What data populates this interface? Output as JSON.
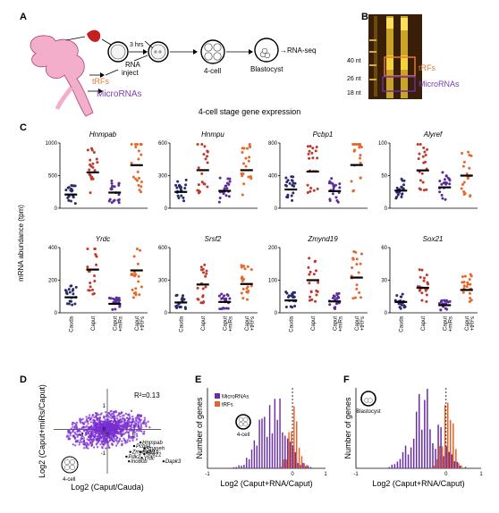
{
  "panel_labels": {
    "a": "A",
    "b": "B",
    "c": "C",
    "d": "D",
    "e": "E",
    "f": "F"
  },
  "panel_a": {
    "time_label": "3 hrs",
    "rna_label_1": "RNA",
    "rna_label_2": "inject",
    "stage_4cell": "4-cell",
    "stage_blastocyst": "Blastocyst",
    "rnaseq": "→RNA-seq",
    "trfs": "tRFs",
    "micrornas": "MicroRNAs",
    "colors": {
      "caput": "#e07040",
      "cauda": "#7a3fb0",
      "sperm": "#c42020",
      "epididymis": "#f0a8c8"
    }
  },
  "panel_b": {
    "markers": [
      "40 nt",
      "26 nt",
      "18 nt"
    ],
    "trfs": "tRFs",
    "micrornas": "MicroRNAs"
  },
  "panel_c": {
    "title": "4-cell stage gene expression",
    "ylabel": "mRNA abundance (tpm)",
    "xcats": [
      "Cauda",
      "Caput",
      "Caput\n+miRs",
      "Caput\n+tRFs"
    ],
    "colors": [
      "#2a2a6e",
      "#c0392b",
      "#5b2d9a",
      "#e8662a"
    ]
  },
  "chart_data": [
    {
      "type": "scatter",
      "title": "Hnmpab",
      "categories": [
        "Cauda",
        "Caput",
        "Caput+miRs",
        "Caput+tRFs"
      ],
      "medians": [
        210,
        550,
        240,
        660
      ],
      "ylim": [
        0,
        1000
      ],
      "yticks": [
        0,
        500,
        1000
      ]
    },
    {
      "type": "scatter",
      "title": "Hnmpu",
      "categories": [
        "Cauda",
        "Caput",
        "Caput+miRs",
        "Caput+tRFs"
      ],
      "medians": [
        150,
        350,
        160,
        350
      ],
      "ylim": [
        0,
        600
      ],
      "yticks": [
        0,
        300,
        600
      ]
    },
    {
      "type": "scatter",
      "title": "Pcbp1",
      "categories": [
        "Cauda",
        "Caput",
        "Caput+miRs",
        "Caput+tRFs"
      ],
      "medians": [
        230,
        450,
        210,
        530
      ],
      "ylim": [
        0,
        800
      ],
      "yticks": [
        0,
        400,
        800
      ]
    },
    {
      "type": "scatter",
      "title": "Alyref",
      "categories": [
        "Cauda",
        "Caput",
        "Caput+miRs",
        "Caput+tRFs"
      ],
      "medians": [
        27,
        58,
        32,
        50
      ],
      "ylim": [
        0,
        100
      ],
      "yticks": [
        0,
        50,
        100
      ]
    },
    {
      "type": "scatter",
      "title": "Yrdc",
      "categories": [
        "Cauda",
        "Caput",
        "Caput+miRs",
        "Caput+tRFs"
      ],
      "medians": [
        95,
        265,
        55,
        260
      ],
      "ylim": [
        0,
        400
      ],
      "yticks": [
        0,
        200,
        400
      ]
    },
    {
      "type": "scatter",
      "title": "Srsf2",
      "categories": [
        "Cauda",
        "Caput",
        "Caput+miRs",
        "Caput+tRFs"
      ],
      "medians": [
        95,
        260,
        100,
        265
      ],
      "ylim": [
        0,
        600
      ],
      "yticks": [
        0,
        300,
        600
      ]
    },
    {
      "type": "scatter",
      "title": "Zmynd19",
      "categories": [
        "Cauda",
        "Caput",
        "Caput+miRs",
        "Caput+tRFs"
      ],
      "medians": [
        38,
        100,
        35,
        108
      ],
      "ylim": [
        0,
        200
      ],
      "yticks": [
        0,
        100,
        200
      ]
    },
    {
      "type": "scatter",
      "title": "Sox21",
      "categories": [
        "Cauda",
        "Caput",
        "Caput+miRs",
        "Caput+tRFs"
      ],
      "medians": [
        10,
        23,
        7,
        21
      ],
      "ylim": [
        0,
        60
      ],
      "yticks": [
        0,
        30,
        60
      ]
    },
    {
      "type": "scatter",
      "title": "",
      "xlabel": "Log2 (Caput/Cauda)",
      "ylabel": "Log2 (Caput+miRs/Caput)",
      "annotation": "R²=0.13",
      "xticks": [
        "-1",
        "0",
        "1"
      ],
      "yticks": [
        "1",
        "0",
        "-1"
      ],
      "inset": "4-cell",
      "genes": [
        {
          "name": "Hnmpab",
          "x": 1.3,
          "y": -0.55
        },
        {
          "name": "Pcbp1",
          "x": 1.05,
          "y": -0.7
        },
        {
          "name": "Rnaseh",
          "x": 1.45,
          "y": -0.8
        },
        {
          "name": "Zmynd19",
          "x": 0.9,
          "y": -0.95
        },
        {
          "name": "Exfk1b",
          "x": 1.3,
          "y": -0.95
        },
        {
          "name": "Sox21",
          "x": 1.45,
          "y": -1.05
        },
        {
          "name": "Pdk2",
          "x": 0.75,
          "y": -1.15
        },
        {
          "name": "Yrdc",
          "x": 1.35,
          "y": -1.2
        },
        {
          "name": "Ino80b",
          "x": 0.85,
          "y": -1.35
        },
        {
          "name": "Dapk3",
          "x": 2.2,
          "y": -1.35
        }
      ]
    },
    {
      "type": "bar",
      "title": "",
      "xlabel": "Log2 (Caput+RNA/Caput)",
      "ylabel": "Number of genes",
      "inset": "4-cell",
      "series": [
        {
          "name": "MicroRNAs",
          "color": "#6a2fa8"
        },
        {
          "name": "tRFs",
          "color": "#e3652b"
        }
      ],
      "xticks": [
        "-1",
        "0",
        "1"
      ]
    },
    {
      "type": "bar",
      "title": "",
      "xlabel": "Log2 (Caput+RNA/Caput)",
      "ylabel": "Number of genes",
      "inset": "Blastocyst",
      "xticks": [
        "-1",
        "0",
        "1"
      ]
    }
  ]
}
